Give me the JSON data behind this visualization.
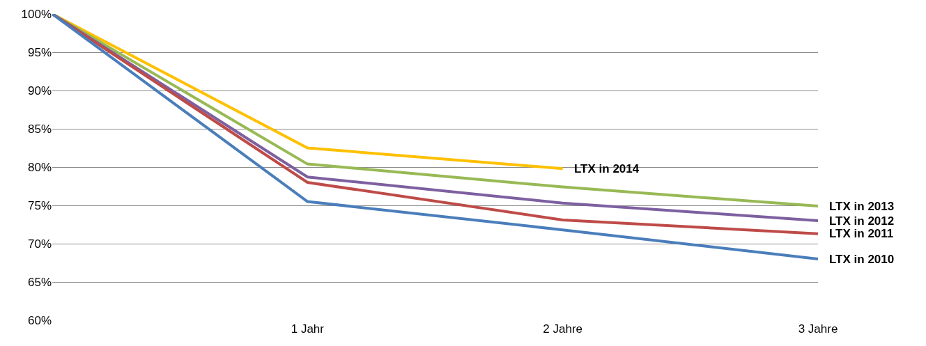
{
  "chart_data": {
    "type": "line",
    "categories": [
      null,
      "1 Jahr",
      "2 Jahre",
      "3 Jahre"
    ],
    "series": [
      {
        "name": "LTX in 2014",
        "color": "#ffc000",
        "values": [
          100,
          82.5,
          79.8,
          null
        ]
      },
      {
        "name": "LTX in 2013",
        "color": "#98b954",
        "values": [
          100,
          80.4,
          77.4,
          74.9
        ]
      },
      {
        "name": "LTX in 2012",
        "color": "#7d60a0",
        "values": [
          100,
          78.7,
          75.3,
          73.0
        ]
      },
      {
        "name": "LTX in 2011",
        "color": "#be4b48",
        "values": [
          100,
          78.0,
          73.1,
          71.3
        ]
      },
      {
        "name": "LTX in 2010",
        "color": "#4a7ebb",
        "values": [
          100,
          75.5,
          71.8,
          68.0
        ]
      }
    ],
    "ylim": [
      60,
      100
    ],
    "yticks": [
      {
        "value": 60,
        "label": "60%"
      },
      {
        "value": 65,
        "label": "65%"
      },
      {
        "value": 70,
        "label": "70%"
      },
      {
        "value": 75,
        "label": "75%"
      },
      {
        "value": 80,
        "label": "80%"
      },
      {
        "value": 85,
        "label": "85%"
      },
      {
        "value": 90,
        "label": "90%"
      },
      {
        "value": 95,
        "label": "95%"
      },
      {
        "value": 100,
        "label": "100%"
      }
    ],
    "grid": "y",
    "legend": false,
    "marker": "none",
    "line_style": "solid"
  }
}
